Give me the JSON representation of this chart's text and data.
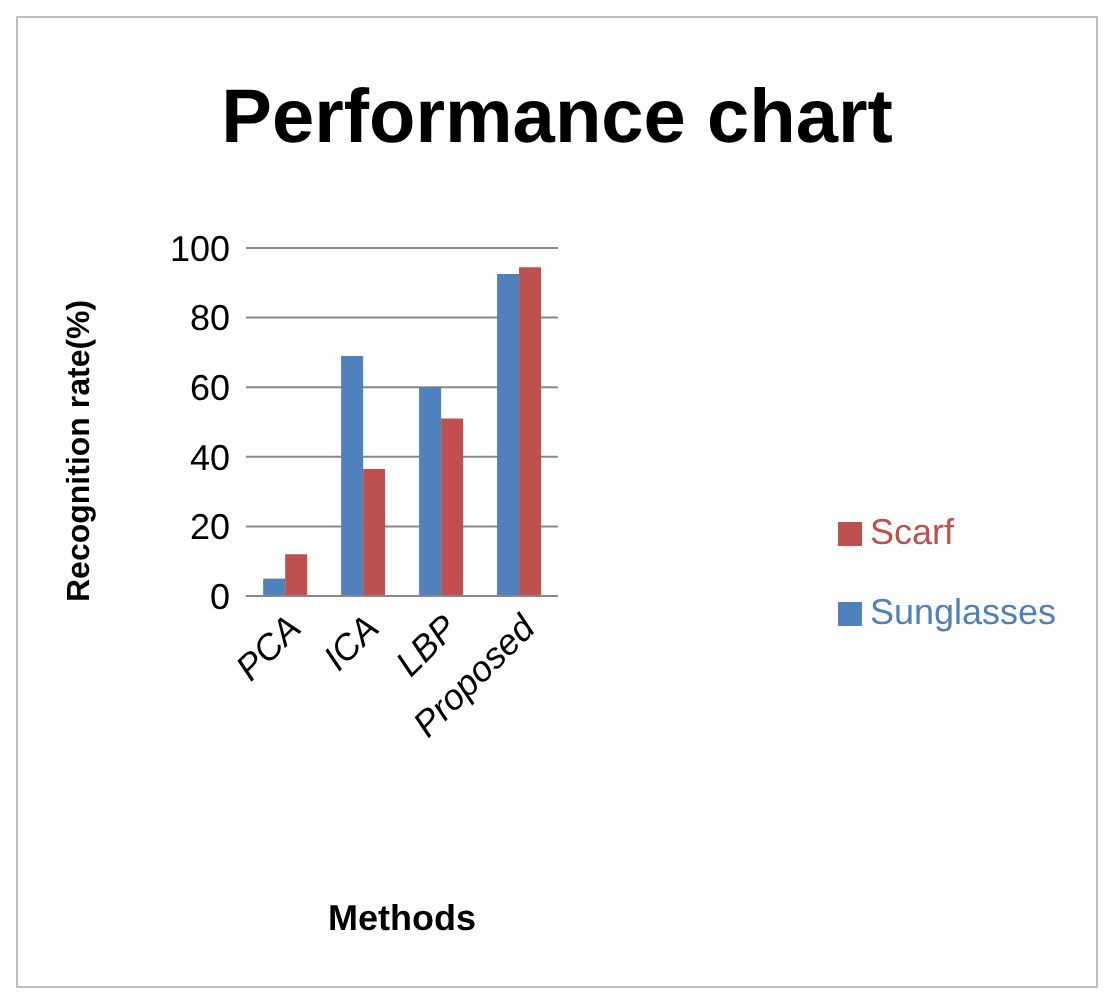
{
  "chart_data": {
    "type": "bar",
    "title": "Performance chart",
    "xlabel": "Methods",
    "ylabel": "Recognition rate(%)",
    "categories": [
      "PCA",
      "ICA",
      "LBP",
      "Proposed"
    ],
    "series": [
      {
        "name": "Sunglasses",
        "color": "#4f81bd",
        "values": [
          5,
          69,
          60,
          92.5
        ]
      },
      {
        "name": "Scarf",
        "color": "#c0504d",
        "values": [
          12,
          36.5,
          51,
          94.5
        ]
      }
    ],
    "ylim": [
      0,
      100
    ],
    "yticks": [
      0,
      20,
      40,
      60,
      80,
      100
    ],
    "grid": "y",
    "legend": "right"
  }
}
